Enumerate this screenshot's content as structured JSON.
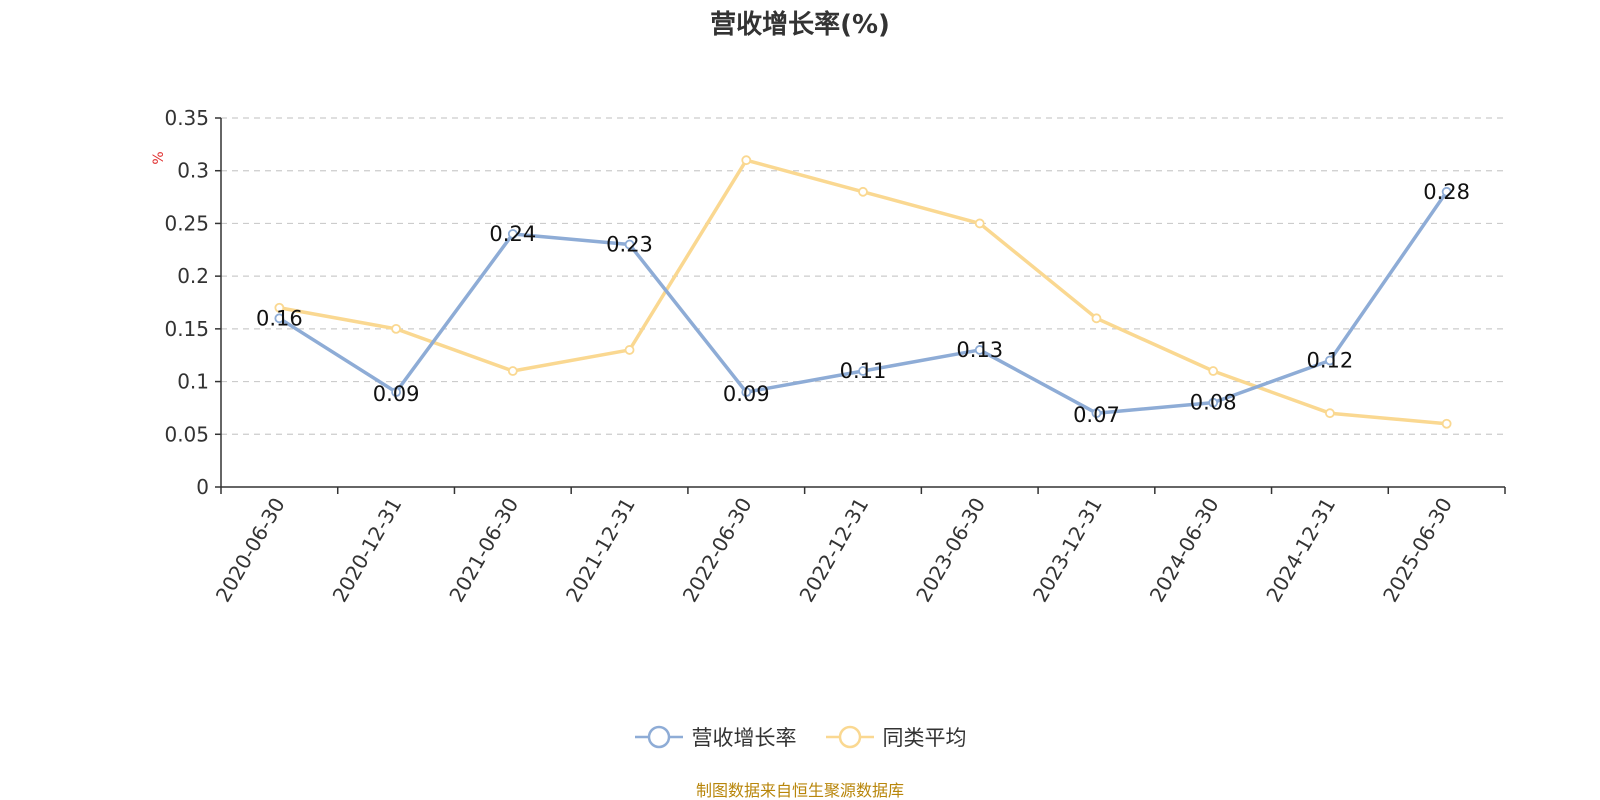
{
  "chart_data": {
    "type": "line",
    "title": "营收增长率(%)",
    "ylabel": "%",
    "categories": [
      "2020-06-30",
      "2020-12-31",
      "2021-06-30",
      "2021-12-31",
      "2022-06-30",
      "2022-12-31",
      "2023-06-30",
      "2023-12-31",
      "2024-06-30",
      "2024-12-31",
      "2025-06-30"
    ],
    "ylim": [
      0,
      0.35
    ],
    "yticks": [
      "0",
      "0.05",
      "0.1",
      "0.15",
      "0.2",
      "0.25",
      "0.3",
      "0.35"
    ],
    "grid": true,
    "legend_position": "bottom",
    "series": [
      {
        "name": "营收增长率",
        "color": "#8eacd6",
        "values": [
          0.16,
          0.09,
          0.24,
          0.23,
          0.09,
          0.11,
          0.13,
          0.07,
          0.08,
          0.12,
          0.28
        ],
        "labels": [
          "0.16",
          "0.09",
          "0.24",
          "0.23",
          "0.09",
          "0.11",
          "0.13",
          "0.07",
          "0.08",
          "0.12",
          "0.28"
        ]
      },
      {
        "name": "同类平均",
        "color": "#fad891",
        "values": [
          0.17,
          0.15,
          0.11,
          0.13,
          0.31,
          0.28,
          0.25,
          0.16,
          0.11,
          0.07,
          0.06
        ]
      }
    ]
  },
  "source_note": "制图数据来自恒生聚源数据库"
}
